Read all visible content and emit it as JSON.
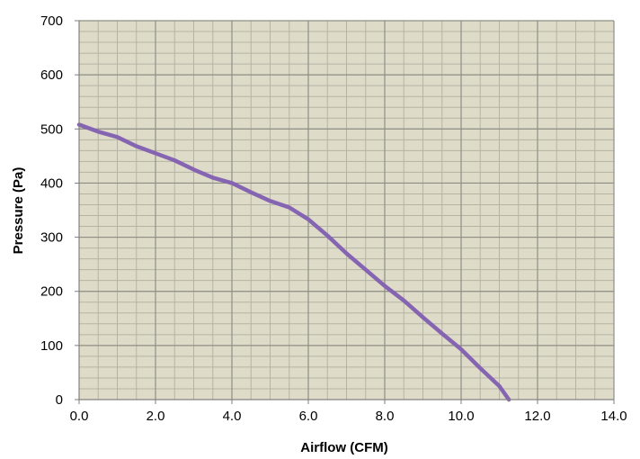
{
  "colors": {
    "plot_background": "#dedcc8",
    "major_grid": "#8f8f86",
    "minor_grid": "#b5b3a4",
    "series_line": "#8565b2"
  },
  "chart_data": {
    "type": "line",
    "title": "",
    "xlabel": "Airflow (CFM)",
    "ylabel": "Pressure (Pa)",
    "xlim": [
      0,
      14
    ],
    "ylim": [
      0,
      700
    ],
    "x_ticks": [
      "0.0",
      "2.0",
      "4.0",
      "6.0",
      "8.0",
      "10.0",
      "12.0",
      "14.0"
    ],
    "y_ticks": [
      "0",
      "100",
      "200",
      "300",
      "400",
      "500",
      "600",
      "700"
    ],
    "grid": true,
    "legend": "none",
    "series": [
      {
        "x": [
          0.0,
          0.5,
          1.0,
          1.5,
          2.0,
          2.5,
          3.0,
          3.5,
          4.0,
          4.5,
          5.0,
          5.5,
          6.0,
          6.5,
          7.0,
          7.5,
          8.0,
          8.5,
          9.0,
          9.5,
          10.0,
          10.5,
          11.0,
          11.25
        ],
        "y": [
          508,
          495,
          485,
          468,
          455,
          442,
          425,
          410,
          400,
          383,
          367,
          355,
          333,
          303,
          270,
          240,
          210,
          183,
          152,
          122,
          93,
          58,
          25,
          0
        ]
      }
    ]
  }
}
